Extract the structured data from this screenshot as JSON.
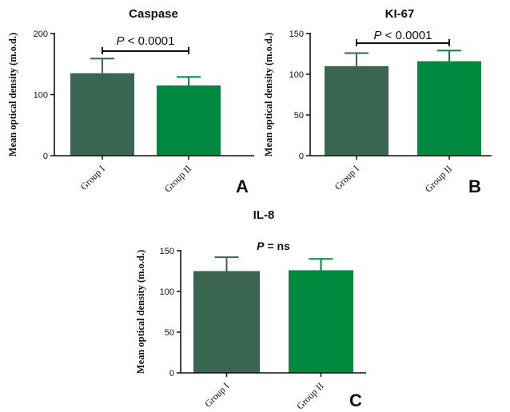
{
  "colors": {
    "group1": "#3a6651",
    "group2": "#00893f",
    "axis": "#111111"
  },
  "chart_data": [
    {
      "type": "bar",
      "title": "Caspase",
      "ylabel": "Mean optical density (m.o.d.)",
      "categories": [
        "Group I",
        "Group II"
      ],
      "values": [
        135,
        115
      ],
      "errors": [
        24,
        14
      ],
      "ylim": [
        0,
        200
      ],
      "yticks": [
        0,
        100,
        200
      ],
      "significance": {
        "prefix": "P",
        "text": " < 0.0001",
        "bracket": true
      },
      "panel_label": "A"
    },
    {
      "type": "bar",
      "title": "KI-67",
      "ylabel": "Mean optical density (m.o.d.)",
      "categories": [
        "Group I",
        "Group II"
      ],
      "values": [
        110,
        116
      ],
      "errors": [
        16,
        13
      ],
      "ylim": [
        0,
        150
      ],
      "yticks": [
        0,
        50,
        100,
        150
      ],
      "significance": {
        "prefix": "P",
        "text": " < 0.0001",
        "bracket": true
      },
      "panel_label": "B"
    },
    {
      "type": "bar",
      "title": "IL-8",
      "ylabel": "Mean optical density (m.o.d.)",
      "categories": [
        "Group I",
        "Group II"
      ],
      "values": [
        125,
        126
      ],
      "errors": [
        17,
        14
      ],
      "ylim": [
        0,
        150
      ],
      "yticks": [
        0,
        50,
        100,
        150
      ],
      "significance": {
        "prefix": "P",
        "text": " = ns",
        "bracket": false
      },
      "panel_label": "C"
    }
  ]
}
